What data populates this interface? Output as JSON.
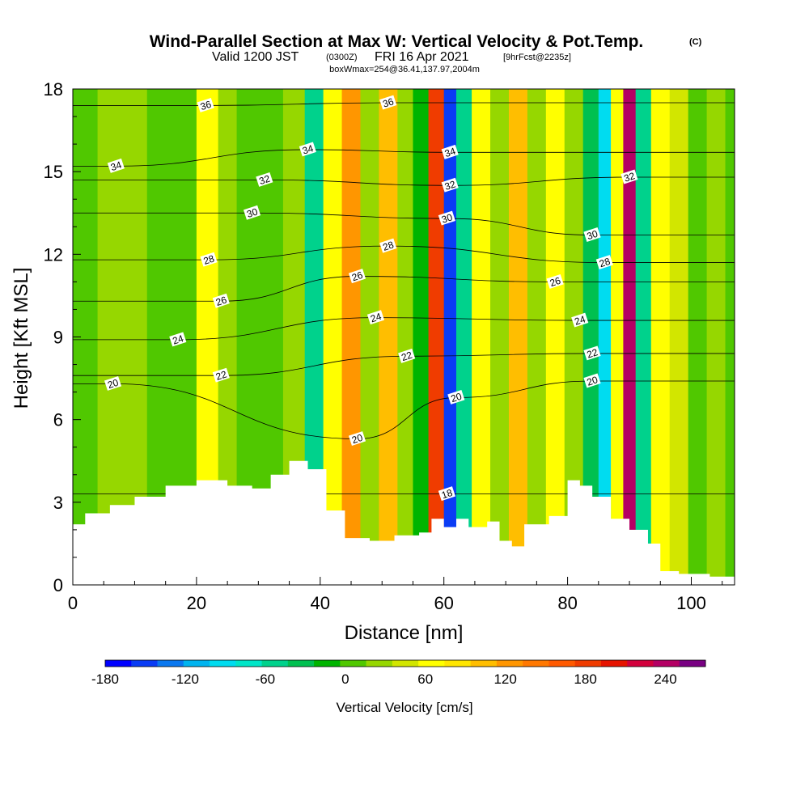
{
  "header": {
    "title": "Wind-Parallel Section at Max W: Vertical Velocity & Pot.Temp.",
    "title_mark": "(C)",
    "valid_prefix": "Valid 1200 JST",
    "valid_zulu": "(0300Z)",
    "valid_date": "FRI 16 Apr 2021",
    "forecast": "[9hrFcst@2235z]",
    "box_info": "boxWmax=254@36.41,137.97,2004m"
  },
  "chart_data": {
    "type": "heatmap",
    "xlabel": "Distance [nm]",
    "ylabel": "Height [Kft MSL]",
    "xlim": [
      0,
      107
    ],
    "ylim": [
      0,
      18
    ],
    "x_ticks": [
      "0",
      "20",
      "40",
      "60",
      "80",
      "100"
    ],
    "y_ticks": [
      "0",
      "3",
      "6",
      "9",
      "12",
      "15",
      "18"
    ],
    "colorbar": {
      "label": "Vertical Velocity [cm/s]",
      "range": [
        -180,
        270
      ],
      "step": 20,
      "tick_labels": [
        "-180",
        "-120",
        "-60",
        "0",
        "60",
        "120",
        "180",
        "240"
      ],
      "colors": [
        "#0000ff",
        "#0a3cf5",
        "#0a78f0",
        "#00b4f0",
        "#00dcf0",
        "#00e6c8",
        "#00d28c",
        "#00c050",
        "#00b400",
        "#50c800",
        "#96d700",
        "#d2e600",
        "#ffff00",
        "#ffe600",
        "#ffbe00",
        "#ff9600",
        "#ff7800",
        "#ff5a00",
        "#f03c00",
        "#e61400",
        "#d2003c",
        "#b40064",
        "#780082"
      ]
    },
    "vertical_velocity_columns": [
      {
        "x": 2,
        "value": 10
      },
      {
        "x": 6,
        "value": 30
      },
      {
        "x": 10,
        "value": 20
      },
      {
        "x": 14,
        "value": 10
      },
      {
        "x": 18,
        "value": 0
      },
      {
        "x": 22,
        "value": 60
      },
      {
        "x": 25,
        "value": 30
      },
      {
        "x": 28,
        "value": 10
      },
      {
        "x": 32,
        "value": 10
      },
      {
        "x": 36,
        "value": 20
      },
      {
        "x": 39,
        "value": -50
      },
      {
        "x": 42,
        "value": 60
      },
      {
        "x": 45,
        "value": 120
      },
      {
        "x": 48,
        "value": 20
      },
      {
        "x": 51,
        "value": 100
      },
      {
        "x": 54,
        "value": 30
      },
      {
        "x": 56,
        "value": -20
      },
      {
        "x": 59,
        "value": 180
      },
      {
        "x": 61,
        "value": -160
      },
      {
        "x": 63,
        "value": -60
      },
      {
        "x": 66,
        "value": 60
      },
      {
        "x": 69,
        "value": 20
      },
      {
        "x": 72,
        "value": 100
      },
      {
        "x": 75,
        "value": 20
      },
      {
        "x": 78,
        "value": 60
      },
      {
        "x": 81,
        "value": 20
      },
      {
        "x": 84,
        "value": -40
      },
      {
        "x": 86,
        "value": -100
      },
      {
        "x": 88,
        "value": 60
      },
      {
        "x": 90,
        "value": 240
      },
      {
        "x": 92,
        "value": -60
      },
      {
        "x": 95,
        "value": 60
      },
      {
        "x": 98,
        "value": 40
      },
      {
        "x": 101,
        "value": 10
      },
      {
        "x": 104,
        "value": 20
      },
      {
        "x": 107,
        "value": 10
      }
    ],
    "terrain": [
      [
        0,
        2.2
      ],
      [
        2,
        2.6
      ],
      [
        6,
        2.9
      ],
      [
        10,
        3.2
      ],
      [
        15,
        3.6
      ],
      [
        20,
        3.8
      ],
      [
        25,
        3.6
      ],
      [
        29,
        3.5
      ],
      [
        32,
        4.0
      ],
      [
        35,
        4.5
      ],
      [
        38,
        4.2
      ],
      [
        41,
        2.7
      ],
      [
        44,
        1.7
      ],
      [
        48,
        1.6
      ],
      [
        52,
        1.8
      ],
      [
        56,
        1.9
      ],
      [
        58,
        2.4
      ],
      [
        60,
        2.1
      ],
      [
        62,
        2.4
      ],
      [
        64,
        2.1
      ],
      [
        67,
        2.3
      ],
      [
        69,
        1.6
      ],
      [
        71,
        1.4
      ],
      [
        73,
        2.2
      ],
      [
        77,
        2.5
      ],
      [
        80,
        3.8
      ],
      [
        82,
        3.6
      ],
      [
        84,
        3.2
      ],
      [
        87,
        2.4
      ],
      [
        90,
        2.0
      ],
      [
        93,
        1.5
      ],
      [
        95,
        0.5
      ],
      [
        98,
        0.4
      ],
      [
        103,
        0.3
      ],
      [
        107,
        0.3
      ]
    ],
    "theta_contours": [
      {
        "level": 18,
        "label": "18",
        "label_x": 60.5,
        "label_y": 3.3
      },
      {
        "level": 20,
        "label": "20",
        "label_x": 6.5,
        "label_y": 7.3
      },
      {
        "level": 20,
        "label": "20",
        "label_x": 46,
        "label_y": 5.3
      },
      {
        "level": 20,
        "label": "20",
        "label_x": 62,
        "label_y": 6.8
      },
      {
        "level": 20,
        "label": "20",
        "label_x": 84,
        "label_y": 7.4
      },
      {
        "level": 22,
        "label": "22",
        "label_x": 24,
        "label_y": 7.6
      },
      {
        "level": 22,
        "label": "22",
        "label_x": 54,
        "label_y": 8.3
      },
      {
        "level": 22,
        "label": "22",
        "label_x": 84,
        "label_y": 8.4
      },
      {
        "level": 24,
        "label": "24",
        "label_x": 17,
        "label_y": 8.9
      },
      {
        "level": 24,
        "label": "24",
        "label_x": 49,
        "label_y": 9.7
      },
      {
        "level": 24,
        "label": "24",
        "label_x": 82,
        "label_y": 9.6
      },
      {
        "level": 26,
        "label": "26",
        "label_x": 24,
        "label_y": 10.3
      },
      {
        "level": 26,
        "label": "26",
        "label_x": 46,
        "label_y": 11.2
      },
      {
        "level": 26,
        "label": "26",
        "label_x": 78,
        "label_y": 11.0
      },
      {
        "level": 28,
        "label": "28",
        "label_x": 22,
        "label_y": 11.8
      },
      {
        "level": 28,
        "label": "28",
        "label_x": 51,
        "label_y": 12.3
      },
      {
        "level": 28,
        "label": "28",
        "label_x": 86,
        "label_y": 11.7
      },
      {
        "level": 30,
        "label": "30",
        "label_x": 29,
        "label_y": 13.5
      },
      {
        "level": 30,
        "label": "30",
        "label_x": 60.5,
        "label_y": 13.3
      },
      {
        "level": 30,
        "label": "30",
        "label_x": 84,
        "label_y": 12.7
      },
      {
        "level": 32,
        "label": "32",
        "label_x": 31,
        "label_y": 14.7
      },
      {
        "level": 32,
        "label": "32",
        "label_x": 61,
        "label_y": 14.5
      },
      {
        "level": 32,
        "label": "32",
        "label_x": 90,
        "label_y": 14.8
      },
      {
        "level": 34,
        "label": "34",
        "label_x": 7,
        "label_y": 15.2
      },
      {
        "level": 34,
        "label": "34",
        "label_x": 38,
        "label_y": 15.8
      },
      {
        "level": 34,
        "label": "34",
        "label_x": 61,
        "label_y": 15.7
      },
      {
        "level": 36,
        "label": "36",
        "label_x": 21.5,
        "label_y": 17.4
      },
      {
        "level": 36,
        "label": "36",
        "label_x": 51,
        "label_y": 17.5
      }
    ]
  }
}
